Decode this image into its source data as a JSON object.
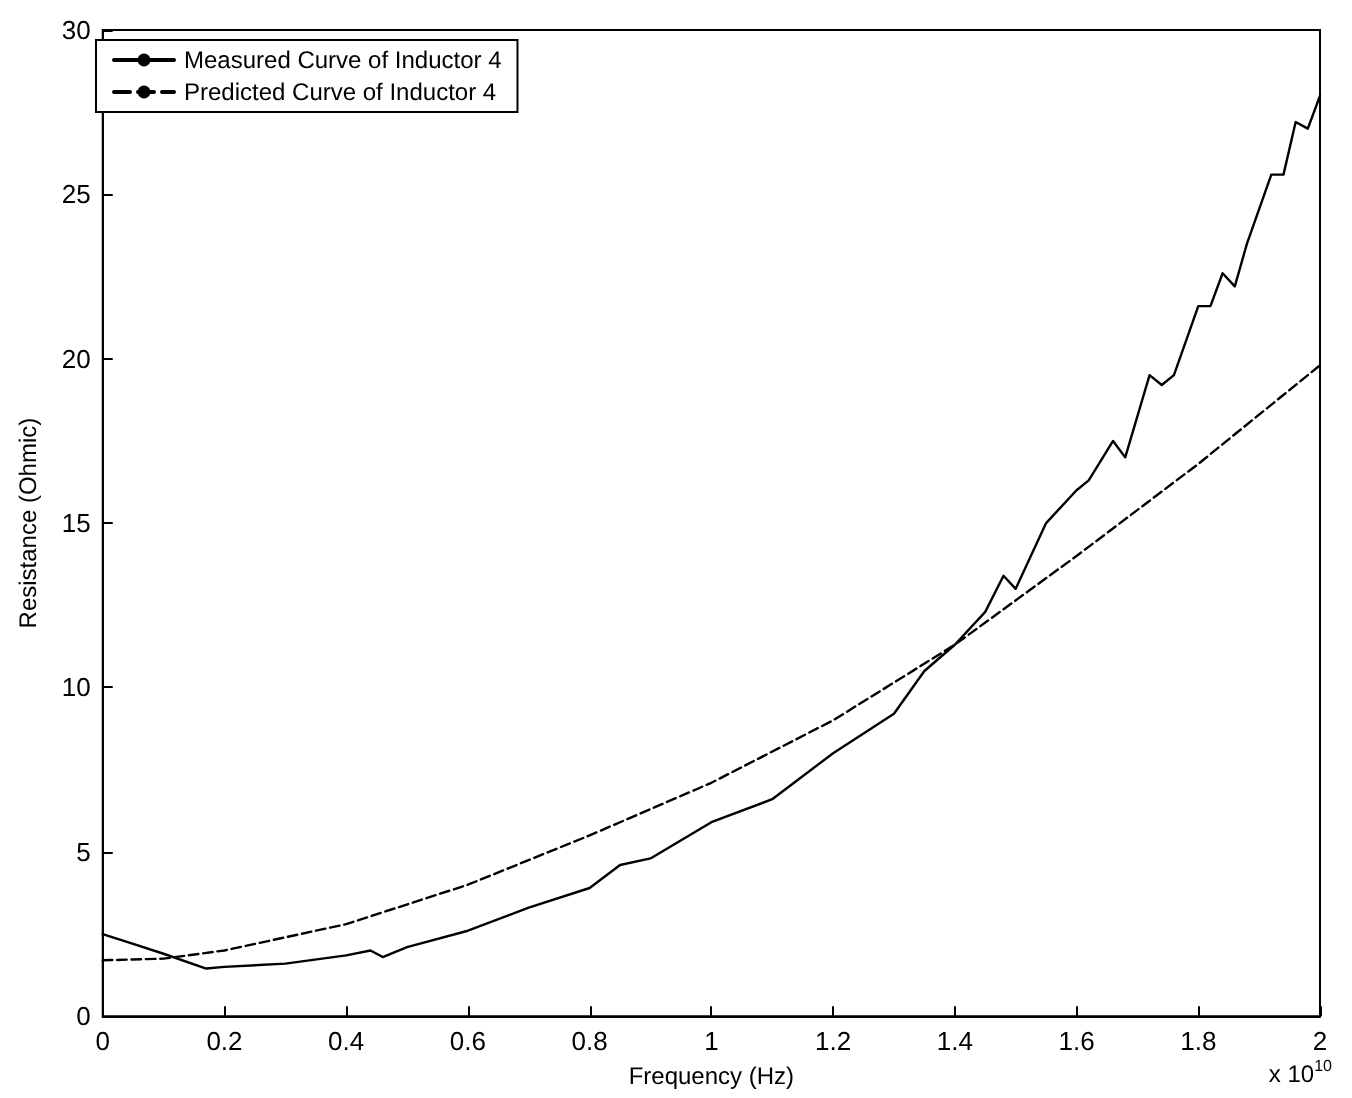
{
  "chart_data": {
    "type": "line",
    "xlabel": "Frequency (Hz)",
    "ylabel": "Resistance (Ohmic)",
    "annotations": [
      "x 10$^{10}$"
    ],
    "xlim": [
      0,
      2
    ],
    "xticks": [
      0,
      0.2,
      0.4,
      0.6,
      0.8,
      1,
      1.2,
      1.4,
      1.6,
      1.8,
      2
    ],
    "ylim": [
      0,
      30
    ],
    "yticks": [
      0,
      5,
      10,
      15,
      20,
      25,
      30
    ],
    "grid": false,
    "legend": "top left",
    "marker": "none",
    "series": [
      {
        "name": "Measured Curve of Inductor 4",
        "color": "#000000",
        "line_style": "solid",
        "x": [
          0,
          0.05,
          0.1,
          0.17,
          0.2,
          0.3,
          0.4,
          0.44,
          0.46,
          0.5,
          0.6,
          0.7,
          0.8,
          0.85,
          0.9,
          1.0,
          1.1,
          1.2,
          1.25,
          1.3,
          1.35,
          1.4,
          1.45,
          1.48,
          1.5,
          1.55,
          1.6,
          1.62,
          1.66,
          1.68,
          1.72,
          1.74,
          1.76,
          1.8,
          1.82,
          1.84,
          1.86,
          1.88,
          1.92,
          1.94,
          1.96,
          1.98,
          2.0
        ],
        "values": [
          2.5,
          2.2,
          1.9,
          1.45,
          1.5,
          1.6,
          1.85,
          2.0,
          1.8,
          2.1,
          2.6,
          3.3,
          3.9,
          4.6,
          4.8,
          5.9,
          6.6,
          8.0,
          8.6,
          9.2,
          10.5,
          11.3,
          12.3,
          13.4,
          13.0,
          15,
          16,
          16.3,
          17.5,
          17.0,
          19.5,
          19.2,
          19.5,
          21.6,
          21.6,
          22.6,
          22.2,
          23.5,
          25.6,
          25.6,
          27.2,
          27.0,
          28
        ]
      },
      {
        "name": "Predicted Curve of Inductor 4",
        "color": "#000000",
        "line_style": "dashed",
        "x": [
          0,
          0.1,
          0.2,
          0.4,
          0.6,
          0.8,
          1.0,
          1.2,
          1.4,
          1.6,
          1.8,
          2.0
        ],
        "values": [
          1.7,
          1.75,
          2.0,
          2.8,
          4.0,
          5.5,
          7.1,
          9.0,
          11.3,
          14.0,
          16.8,
          19.8
        ]
      }
    ]
  }
}
